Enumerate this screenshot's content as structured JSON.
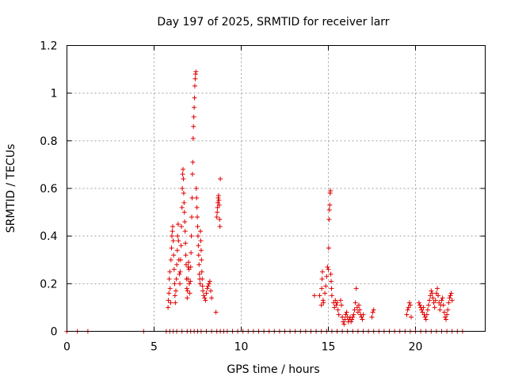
{
  "chart_data": {
    "type": "scatter",
    "title": "Day 197 of 2025, SRMTID for receiver larr",
    "xlabel": "GPS time / hours",
    "ylabel": "SRMTID / TECUs",
    "xlim": [
      0,
      24
    ],
    "ylim": [
      0,
      1.2
    ],
    "x_ticks": [
      0,
      5,
      10,
      15,
      20
    ],
    "x_tick_labels": [
      "0",
      "5",
      "10",
      "15",
      "20"
    ],
    "y_ticks": [
      0,
      0.2,
      0.4,
      0.6,
      0.8,
      1,
      1.2
    ],
    "y_tick_labels": [
      "0",
      "0.2",
      "0.4",
      "0.6",
      "0.8",
      "1",
      "1.2"
    ],
    "grid": true,
    "marker": "+",
    "marker_color": "#e00000",
    "series": [
      {
        "name": "SRMTID",
        "points": [
          [
            0.0,
            0
          ],
          [
            0.6,
            0
          ],
          [
            1.2,
            0
          ],
          [
            4.4,
            0
          ],
          [
            5.7,
            0
          ],
          [
            5.9,
            0
          ],
          [
            6.1,
            0
          ],
          [
            6.3,
            0
          ],
          [
            6.6,
            0
          ],
          [
            6.9,
            0
          ],
          [
            7.1,
            0
          ],
          [
            7.3,
            0
          ],
          [
            7.5,
            0
          ],
          [
            7.7,
            0
          ],
          [
            8.0,
            0
          ],
          [
            8.3,
            0
          ],
          [
            8.6,
            0
          ],
          [
            8.8,
            0
          ],
          [
            9.0,
            0
          ],
          [
            9.2,
            0
          ],
          [
            9.5,
            0
          ],
          [
            9.8,
            0
          ],
          [
            10.1,
            0
          ],
          [
            10.4,
            0
          ],
          [
            10.7,
            0
          ],
          [
            11.0,
            0
          ],
          [
            11.3,
            0
          ],
          [
            11.6,
            0
          ],
          [
            11.9,
            0
          ],
          [
            12.2,
            0
          ],
          [
            12.5,
            0
          ],
          [
            12.8,
            0
          ],
          [
            13.1,
            0
          ],
          [
            13.4,
            0
          ],
          [
            13.7,
            0
          ],
          [
            14.0,
            0
          ],
          [
            14.3,
            0
          ],
          [
            14.6,
            0
          ],
          [
            14.9,
            0
          ],
          [
            15.2,
            0
          ],
          [
            15.5,
            0
          ],
          [
            15.8,
            0
          ],
          [
            16.1,
            0
          ],
          [
            16.4,
            0
          ],
          [
            16.7,
            0
          ],
          [
            17.0,
            0
          ],
          [
            17.3,
            0
          ],
          [
            17.6,
            0
          ],
          [
            17.9,
            0
          ],
          [
            18.2,
            0
          ],
          [
            18.5,
            0
          ],
          [
            18.8,
            0
          ],
          [
            19.1,
            0
          ],
          [
            19.4,
            0
          ],
          [
            19.7,
            0
          ],
          [
            20.0,
            0
          ],
          [
            20.3,
            0
          ],
          [
            20.6,
            0
          ],
          [
            20.9,
            0
          ],
          [
            21.2,
            0
          ],
          [
            21.5,
            0
          ],
          [
            21.8,
            0
          ],
          [
            22.1,
            0
          ],
          [
            22.4,
            0
          ],
          [
            22.7,
            0
          ],
          [
            5.8,
            0.1
          ],
          [
            5.82,
            0.13
          ],
          [
            5.85,
            0.16
          ],
          [
            5.87,
            0.22
          ],
          [
            5.9,
            0.25
          ],
          [
            5.92,
            0.18
          ],
          [
            5.95,
            0.12
          ],
          [
            5.97,
            0.3
          ],
          [
            6.0,
            0.35
          ],
          [
            6.02,
            0.4
          ],
          [
            6.05,
            0.42
          ],
          [
            6.07,
            0.44
          ],
          [
            6.1,
            0.38
          ],
          [
            6.12,
            0.32
          ],
          [
            6.15,
            0.26
          ],
          [
            6.18,
            0.2
          ],
          [
            6.2,
            0.15
          ],
          [
            6.22,
            0.12
          ],
          [
            6.25,
            0.17
          ],
          [
            6.28,
            0.22
          ],
          [
            6.3,
            0.28
          ],
          [
            6.33,
            0.34
          ],
          [
            6.35,
            0.4
          ],
          [
            6.38,
            0.45
          ],
          [
            6.4,
            0.38
          ],
          [
            6.42,
            0.3
          ],
          [
            6.45,
            0.24
          ],
          [
            6.48,
            0.2
          ],
          [
            6.5,
            0.25
          ],
          [
            6.52,
            0.3
          ],
          [
            6.55,
            0.36
          ],
          [
            6.57,
            0.44
          ],
          [
            6.6,
            0.52
          ],
          [
            6.62,
            0.6
          ],
          [
            6.64,
            0.66
          ],
          [
            6.66,
            0.68
          ],
          [
            6.68,
            0.64
          ],
          [
            6.7,
            0.58
          ],
          [
            6.72,
            0.54
          ],
          [
            6.74,
            0.5
          ],
          [
            6.76,
            0.46
          ],
          [
            6.78,
            0.42
          ],
          [
            6.8,
            0.37
          ],
          [
            6.82,
            0.32
          ],
          [
            6.84,
            0.28
          ],
          [
            6.86,
            0.22
          ],
          [
            6.88,
            0.18
          ],
          [
            6.9,
            0.14
          ],
          [
            6.92,
            0.17
          ],
          [
            6.94,
            0.22
          ],
          [
            6.96,
            0.27
          ],
          [
            6.98,
            0.29
          ],
          [
            7.0,
            0.26
          ],
          [
            7.02,
            0.2
          ],
          [
            7.05,
            0.16
          ],
          [
            7.08,
            0.21
          ],
          [
            7.1,
            0.27
          ],
          [
            7.12,
            0.33
          ],
          [
            7.14,
            0.4
          ],
          [
            7.16,
            0.48
          ],
          [
            7.18,
            0.56
          ],
          [
            7.2,
            0.66
          ],
          [
            7.22,
            0.71
          ],
          [
            7.24,
            0.81
          ],
          [
            7.26,
            0.86
          ],
          [
            7.28,
            0.9
          ],
          [
            7.3,
            0.94
          ],
          [
            7.32,
            0.98
          ],
          [
            7.34,
            1.03
          ],
          [
            7.36,
            1.06
          ],
          [
            7.38,
            1.08
          ],
          [
            7.4,
            1.09
          ],
          [
            7.42,
            0.6
          ],
          [
            7.44,
            0.56
          ],
          [
            7.46,
            0.52
          ],
          [
            7.48,
            0.48
          ],
          [
            7.5,
            0.44
          ],
          [
            7.52,
            0.4
          ],
          [
            7.54,
            0.36
          ],
          [
            7.56,
            0.32
          ],
          [
            7.58,
            0.28
          ],
          [
            7.6,
            0.24
          ],
          [
            7.62,
            0.22
          ],
          [
            7.64,
            0.2
          ],
          [
            7.66,
            0.42
          ],
          [
            7.68,
            0.38
          ],
          [
            7.7,
            0.34
          ],
          [
            7.72,
            0.3
          ],
          [
            7.74,
            0.25
          ],
          [
            7.76,
            0.22
          ],
          [
            7.78,
            0.19
          ],
          [
            7.8,
            0.17
          ],
          [
            7.85,
            0.15
          ],
          [
            7.9,
            0.14
          ],
          [
            7.95,
            0.13
          ],
          [
            8.0,
            0.16
          ],
          [
            8.05,
            0.18
          ],
          [
            8.1,
            0.19
          ],
          [
            8.15,
            0.2
          ],
          [
            8.2,
            0.21
          ],
          [
            8.25,
            0.17
          ],
          [
            8.3,
            0.14
          ],
          [
            8.55,
            0.08
          ],
          [
            8.6,
            0.48
          ],
          [
            8.62,
            0.5
          ],
          [
            8.64,
            0.52
          ],
          [
            8.66,
            0.54
          ],
          [
            8.68,
            0.56
          ],
          [
            8.7,
            0.57
          ],
          [
            8.72,
            0.55
          ],
          [
            8.74,
            0.53
          ],
          [
            8.76,
            0.47
          ],
          [
            8.78,
            0.44
          ],
          [
            8.8,
            0.64
          ],
          [
            14.2,
            0.15
          ],
          [
            14.5,
            0.15
          ],
          [
            14.6,
            0.11
          ],
          [
            14.62,
            0.18
          ],
          [
            14.64,
            0.22
          ],
          [
            14.66,
            0.25
          ],
          [
            14.7,
            0.13
          ],
          [
            14.72,
            0.12
          ],
          [
            14.8,
            0.16
          ],
          [
            14.85,
            0.19
          ],
          [
            14.9,
            0.23
          ],
          [
            14.95,
            0.27
          ],
          [
            15.0,
            0.26
          ],
          [
            15.02,
            0.35
          ],
          [
            15.04,
            0.47
          ],
          [
            15.06,
            0.51
          ],
          [
            15.08,
            0.53
          ],
          [
            15.1,
            0.58
          ],
          [
            15.12,
            0.59
          ],
          [
            15.14,
            0.24
          ],
          [
            15.16,
            0.21
          ],
          [
            15.18,
            0.18
          ],
          [
            15.2,
            0.15
          ],
          [
            15.3,
            0.12
          ],
          [
            15.35,
            0.1
          ],
          [
            15.4,
            0.13
          ],
          [
            15.45,
            0.11
          ],
          [
            15.5,
            0.12
          ],
          [
            15.55,
            0.09
          ],
          [
            15.6,
            0.07
          ],
          [
            15.7,
            0.13
          ],
          [
            15.75,
            0.11
          ],
          [
            15.8,
            0.06
          ],
          [
            15.85,
            0.04
          ],
          [
            15.9,
            0.03
          ],
          [
            15.95,
            0.05
          ],
          [
            16.0,
            0.07
          ],
          [
            16.05,
            0.08
          ],
          [
            16.1,
            0.06
          ],
          [
            16.15,
            0.04
          ],
          [
            16.2,
            0.05
          ],
          [
            16.25,
            0.06
          ],
          [
            16.3,
            0.04
          ],
          [
            16.35,
            0.05
          ],
          [
            16.4,
            0.06
          ],
          [
            16.45,
            0.07
          ],
          [
            16.5,
            0.09
          ],
          [
            16.55,
            0.12
          ],
          [
            16.6,
            0.18
          ],
          [
            16.65,
            0.1
          ],
          [
            16.7,
            0.08
          ],
          [
            16.75,
            0.11
          ],
          [
            16.8,
            0.09
          ],
          [
            16.85,
            0.07
          ],
          [
            16.9,
            0.06
          ],
          [
            16.95,
            0.05
          ],
          [
            17.0,
            0.07
          ],
          [
            17.5,
            0.06
          ],
          [
            17.55,
            0.08
          ],
          [
            17.6,
            0.09
          ],
          [
            19.5,
            0.07
          ],
          [
            19.55,
            0.09
          ],
          [
            19.6,
            0.1
          ],
          [
            19.65,
            0.12
          ],
          [
            19.7,
            0.11
          ],
          [
            19.75,
            0.06
          ],
          [
            20.2,
            0.12
          ],
          [
            20.25,
            0.11
          ],
          [
            20.3,
            0.1
          ],
          [
            20.35,
            0.09
          ],
          [
            20.4,
            0.08
          ],
          [
            20.45,
            0.1
          ],
          [
            20.5,
            0.07
          ],
          [
            20.55,
            0.06
          ],
          [
            20.6,
            0.05
          ],
          [
            20.65,
            0.07
          ],
          [
            20.7,
            0.09
          ],
          [
            20.75,
            0.11
          ],
          [
            20.8,
            0.13
          ],
          [
            20.85,
            0.15
          ],
          [
            20.9,
            0.17
          ],
          [
            20.95,
            0.16
          ],
          [
            21.0,
            0.14
          ],
          [
            21.05,
            0.12
          ],
          [
            21.1,
            0.1
          ],
          [
            21.15,
            0.13
          ],
          [
            21.2,
            0.16
          ],
          [
            21.25,
            0.18
          ],
          [
            21.3,
            0.15
          ],
          [
            21.35,
            0.12
          ],
          [
            21.4,
            0.09
          ],
          [
            21.45,
            0.11
          ],
          [
            21.5,
            0.13
          ],
          [
            21.55,
            0.14
          ],
          [
            21.6,
            0.11
          ],
          [
            21.65,
            0.08
          ],
          [
            21.7,
            0.06
          ],
          [
            21.75,
            0.05
          ],
          [
            21.8,
            0.07
          ],
          [
            21.85,
            0.09
          ],
          [
            21.9,
            0.12
          ],
          [
            21.95,
            0.14
          ],
          [
            22.0,
            0.15
          ],
          [
            22.05,
            0.16
          ],
          [
            22.1,
            0.13
          ]
        ]
      }
    ]
  }
}
